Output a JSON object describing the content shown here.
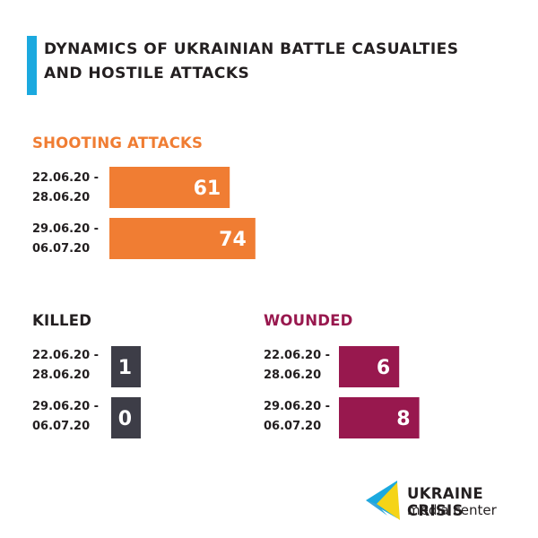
{
  "title_line1": "DYNAMICS OF UKRAINIAN BATTLE CASUALTIES",
  "title_line2": "AND HOSTILE ATTACKS",
  "logo": {
    "line1": "UKRAINE CRISIS",
    "line2": "media center"
  },
  "colors": {
    "accent": "#1ba9df",
    "shooting": "#f07d33",
    "killed": "#3d3d47",
    "wounded": "#98184e"
  },
  "chart_data": [
    {
      "type": "bar",
      "title": "SHOOTING ATTACKS",
      "categories": [
        "22.06.20 -\n28.06.20",
        "29.06.20 -\n06.07.20"
      ],
      "values": [
        61,
        74
      ],
      "color": "#f07d33"
    },
    {
      "type": "bar",
      "title": "KILLED",
      "categories": [
        "22.06.20 -\n28.06.20",
        "29.06.20 -\n06.07.20"
      ],
      "values": [
        1,
        0
      ],
      "color": "#3d3d47"
    },
    {
      "type": "bar",
      "title": "WOUNDED",
      "categories": [
        "22.06.20 -\n28.06.20",
        "29.06.20 -\n06.07.20"
      ],
      "values": [
        6,
        8
      ],
      "color": "#98184e"
    }
  ]
}
